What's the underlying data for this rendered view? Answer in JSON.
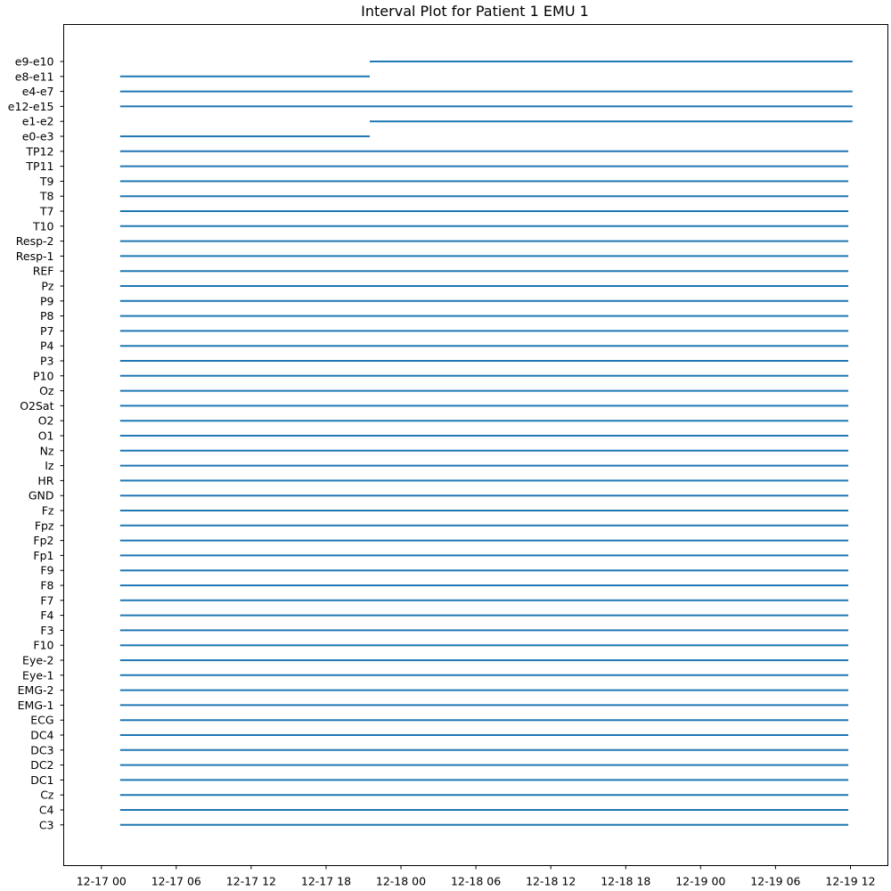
{
  "chart_data": {
    "type": "interval",
    "title": "Interval Plot for Patient 1 EMU 1",
    "xlabel": "",
    "ylabel": "",
    "grid": false,
    "series_color": "#1f77b4",
    "x_range": [
      "2016-12-16T20:59",
      "2016-12-19T15:00"
    ],
    "x_ticks": [
      "12-17 00",
      "12-17 06",
      "12-17 12",
      "12-17 18",
      "12-18 00",
      "12-18 06",
      "12-18 12",
      "12-18 18",
      "12-19 00",
      "12-19 06",
      "12-19 12"
    ],
    "x_tick_values": [
      "2016-12-17T00:00",
      "2016-12-17T06:00",
      "2016-12-17T12:00",
      "2016-12-17T18:00",
      "2016-12-18T00:00",
      "2016-12-18T06:00",
      "2016-12-18T12:00",
      "2016-12-18T18:00",
      "2016-12-19T00:00",
      "2016-12-19T06:00",
      "2016-12-19T12:00"
    ],
    "channels": [
      {
        "name": "e9-e10",
        "start": "2016-12-17T21:30",
        "end": "2016-12-19T12:10"
      },
      {
        "name": "e8-e11",
        "start": "2016-12-17T01:30",
        "end": "2016-12-17T21:30"
      },
      {
        "name": "e4-e7",
        "start": "2016-12-17T01:30",
        "end": "2016-12-19T12:10"
      },
      {
        "name": "e12-e15",
        "start": "2016-12-17T01:30",
        "end": "2016-12-19T12:10"
      },
      {
        "name": "e1-e2",
        "start": "2016-12-17T21:30",
        "end": "2016-12-19T12:10"
      },
      {
        "name": "e0-e3",
        "start": "2016-12-17T01:30",
        "end": "2016-12-17T21:30"
      },
      {
        "name": "TP12",
        "start": "2016-12-17T01:30",
        "end": "2016-12-19T11:50"
      },
      {
        "name": "TP11",
        "start": "2016-12-17T01:30",
        "end": "2016-12-19T11:50"
      },
      {
        "name": "T9",
        "start": "2016-12-17T01:30",
        "end": "2016-12-19T11:50"
      },
      {
        "name": "T8",
        "start": "2016-12-17T01:30",
        "end": "2016-12-19T11:50"
      },
      {
        "name": "T7",
        "start": "2016-12-17T01:30",
        "end": "2016-12-19T11:50"
      },
      {
        "name": "T10",
        "start": "2016-12-17T01:30",
        "end": "2016-12-19T11:50"
      },
      {
        "name": "Resp-2",
        "start": "2016-12-17T01:30",
        "end": "2016-12-19T11:50"
      },
      {
        "name": "Resp-1",
        "start": "2016-12-17T01:30",
        "end": "2016-12-19T11:50"
      },
      {
        "name": "REF",
        "start": "2016-12-17T01:30",
        "end": "2016-12-19T11:50"
      },
      {
        "name": "Pz",
        "start": "2016-12-17T01:30",
        "end": "2016-12-19T11:50"
      },
      {
        "name": "P9",
        "start": "2016-12-17T01:30",
        "end": "2016-12-19T11:50"
      },
      {
        "name": "P8",
        "start": "2016-12-17T01:30",
        "end": "2016-12-19T11:50"
      },
      {
        "name": "P7",
        "start": "2016-12-17T01:30",
        "end": "2016-12-19T11:50"
      },
      {
        "name": "P4",
        "start": "2016-12-17T01:30",
        "end": "2016-12-19T11:50"
      },
      {
        "name": "P3",
        "start": "2016-12-17T01:30",
        "end": "2016-12-19T11:50"
      },
      {
        "name": "P10",
        "start": "2016-12-17T01:30",
        "end": "2016-12-19T11:50"
      },
      {
        "name": "Oz",
        "start": "2016-12-17T01:30",
        "end": "2016-12-19T11:50"
      },
      {
        "name": "O2Sat",
        "start": "2016-12-17T01:30",
        "end": "2016-12-19T11:50"
      },
      {
        "name": "O2",
        "start": "2016-12-17T01:30",
        "end": "2016-12-19T11:50"
      },
      {
        "name": "O1",
        "start": "2016-12-17T01:30",
        "end": "2016-12-19T11:50"
      },
      {
        "name": "Nz",
        "start": "2016-12-17T01:30",
        "end": "2016-12-19T11:50"
      },
      {
        "name": "Iz",
        "start": "2016-12-17T01:30",
        "end": "2016-12-19T11:50"
      },
      {
        "name": "HR",
        "start": "2016-12-17T01:30",
        "end": "2016-12-19T11:50"
      },
      {
        "name": "GND",
        "start": "2016-12-17T01:30",
        "end": "2016-12-19T11:50"
      },
      {
        "name": "Fz",
        "start": "2016-12-17T01:30",
        "end": "2016-12-19T11:50"
      },
      {
        "name": "Fpz",
        "start": "2016-12-17T01:30",
        "end": "2016-12-19T11:50"
      },
      {
        "name": "Fp2",
        "start": "2016-12-17T01:30",
        "end": "2016-12-19T11:50"
      },
      {
        "name": "Fp1",
        "start": "2016-12-17T01:30",
        "end": "2016-12-19T11:50"
      },
      {
        "name": "F9",
        "start": "2016-12-17T01:30",
        "end": "2016-12-19T11:50"
      },
      {
        "name": "F8",
        "start": "2016-12-17T01:30",
        "end": "2016-12-19T11:50"
      },
      {
        "name": "F7",
        "start": "2016-12-17T01:30",
        "end": "2016-12-19T11:50"
      },
      {
        "name": "F4",
        "start": "2016-12-17T01:30",
        "end": "2016-12-19T11:50"
      },
      {
        "name": "F3",
        "start": "2016-12-17T01:30",
        "end": "2016-12-19T11:50"
      },
      {
        "name": "F10",
        "start": "2016-12-17T01:30",
        "end": "2016-12-19T11:50"
      },
      {
        "name": "Eye-2",
        "start": "2016-12-17T01:30",
        "end": "2016-12-19T11:50"
      },
      {
        "name": "Eye-1",
        "start": "2016-12-17T01:30",
        "end": "2016-12-19T11:50"
      },
      {
        "name": "EMG-2",
        "start": "2016-12-17T01:30",
        "end": "2016-12-19T11:50"
      },
      {
        "name": "EMG-1",
        "start": "2016-12-17T01:30",
        "end": "2016-12-19T11:50"
      },
      {
        "name": "ECG",
        "start": "2016-12-17T01:30",
        "end": "2016-12-19T11:50"
      },
      {
        "name": "DC4",
        "start": "2016-12-17T01:30",
        "end": "2016-12-19T11:50"
      },
      {
        "name": "DC3",
        "start": "2016-12-17T01:30",
        "end": "2016-12-19T11:50"
      },
      {
        "name": "DC2",
        "start": "2016-12-17T01:30",
        "end": "2016-12-19T11:50"
      },
      {
        "name": "DC1",
        "start": "2016-12-17T01:30",
        "end": "2016-12-19T11:50"
      },
      {
        "name": "Cz",
        "start": "2016-12-17T01:30",
        "end": "2016-12-19T11:50"
      },
      {
        "name": "C4",
        "start": "2016-12-17T01:30",
        "end": "2016-12-19T11:50"
      },
      {
        "name": "C3",
        "start": "2016-12-17T01:30",
        "end": "2016-12-19T11:50"
      }
    ]
  }
}
